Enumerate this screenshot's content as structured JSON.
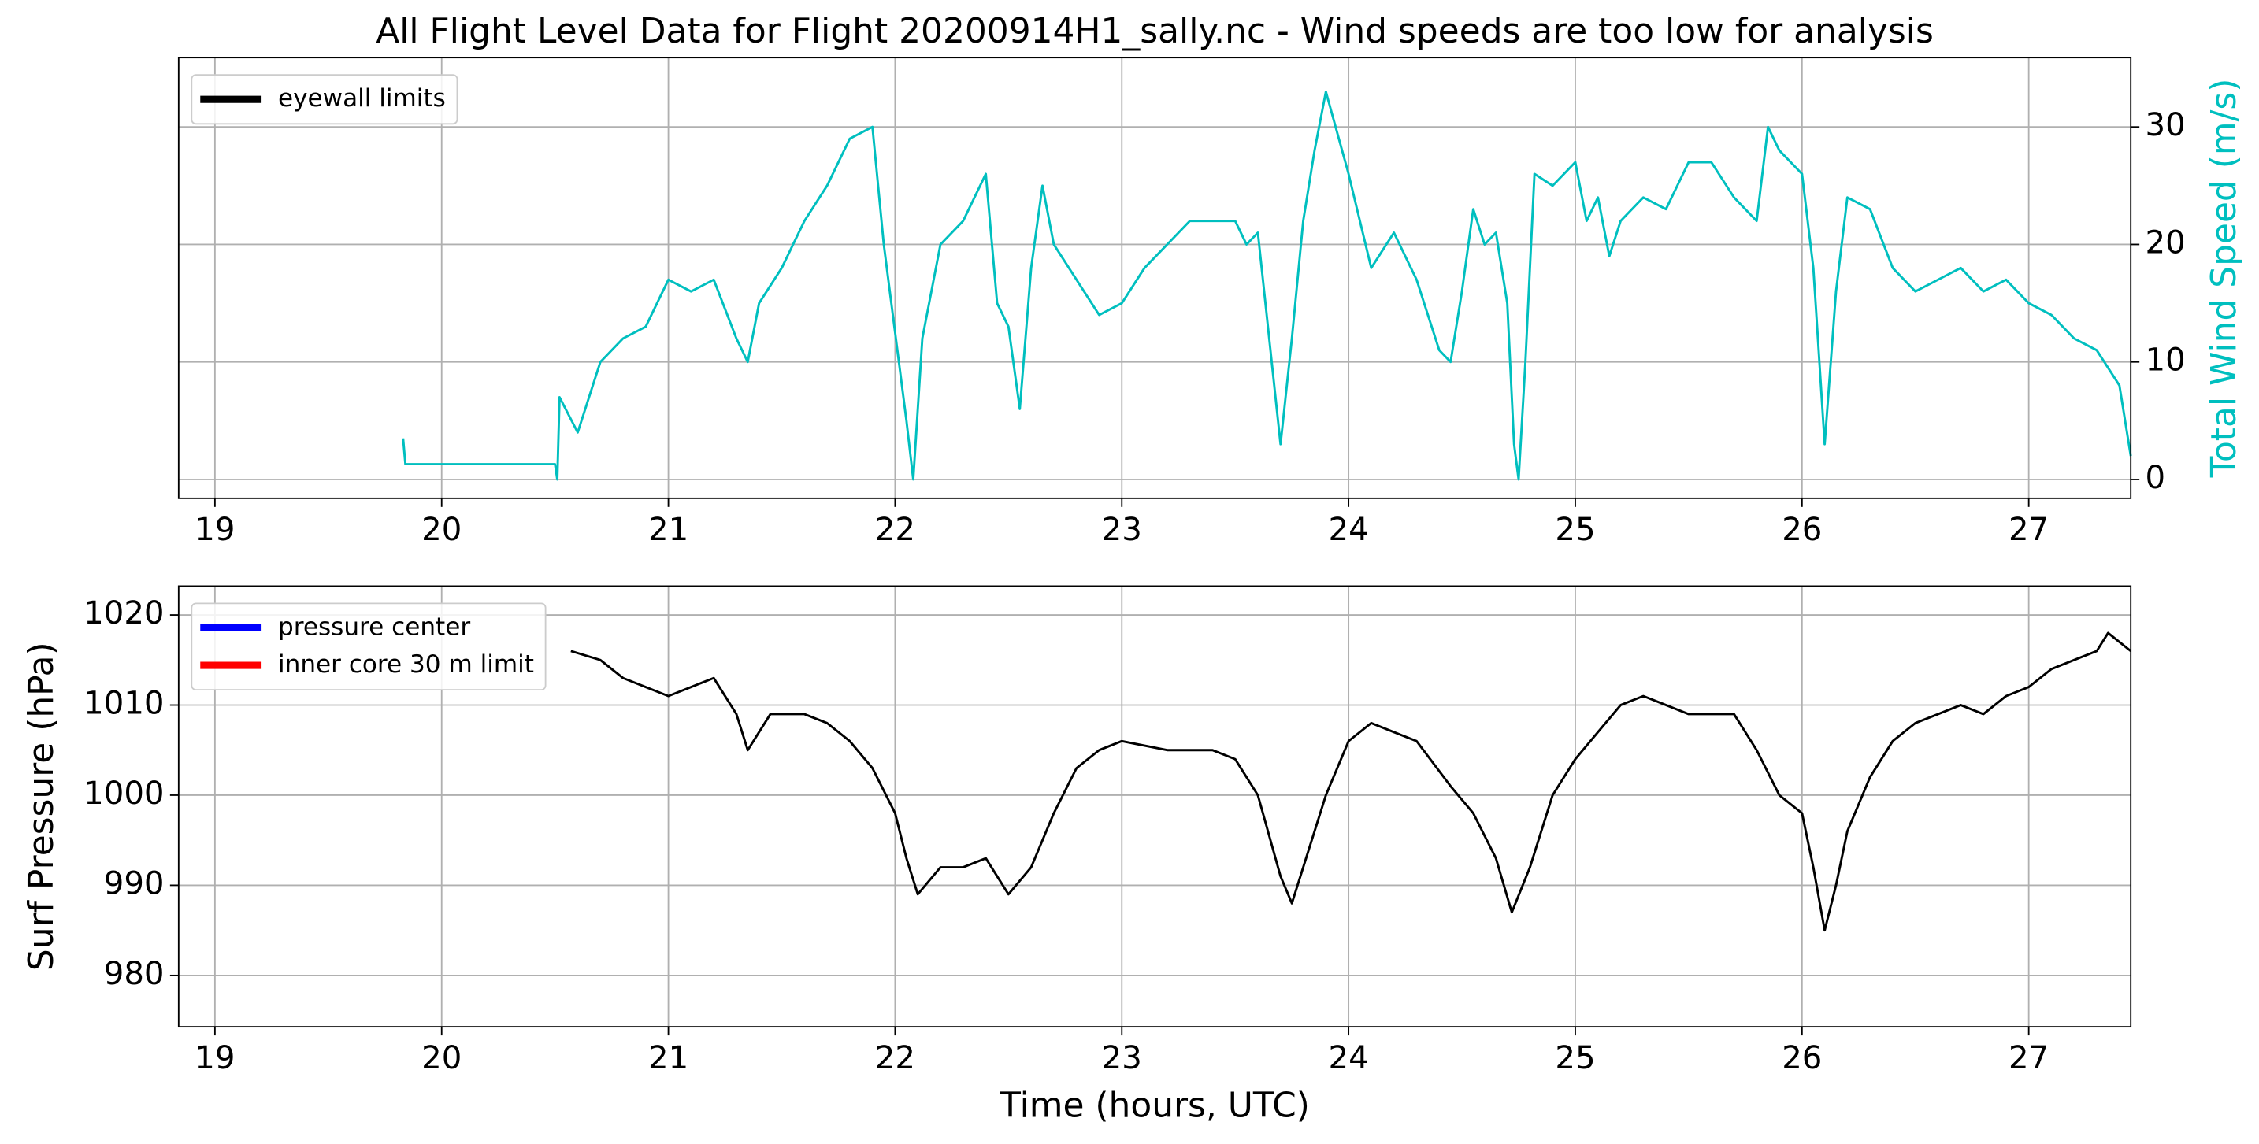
{
  "chart_data": [
    {
      "type": "line",
      "title": "All Flight Level Data for Flight 20200914H1_sally.nc - Wind speeds are too low for analysis",
      "y_label": "Total Wind Speed (m/s)",
      "y_label_color": "#00bfbf",
      "y_axis_side": "right",
      "color": "#00bfbf",
      "x": [
        19.83,
        19.84,
        20.5,
        20.51,
        20.52,
        20.6,
        20.7,
        20.8,
        20.9,
        21.0,
        21.1,
        21.2,
        21.3,
        21.35,
        21.4,
        21.5,
        21.6,
        21.7,
        21.8,
        21.9,
        21.95,
        22.05,
        22.08,
        22.12,
        22.2,
        22.3,
        22.4,
        22.45,
        22.5,
        22.55,
        22.6,
        22.65,
        22.7,
        22.8,
        22.9,
        23.0,
        23.1,
        23.2,
        23.3,
        23.4,
        23.5,
        23.55,
        23.6,
        23.65,
        23.7,
        23.75,
        23.8,
        23.85,
        23.9,
        24.0,
        24.05,
        24.1,
        24.2,
        24.3,
        24.4,
        24.45,
        24.5,
        24.55,
        24.6,
        24.65,
        24.7,
        24.73,
        24.75,
        24.78,
        24.82,
        24.9,
        25.0,
        25.05,
        25.1,
        25.15,
        25.2,
        25.3,
        25.4,
        25.5,
        25.6,
        25.7,
        25.8,
        25.85,
        25.9,
        26.0,
        26.05,
        26.1,
        26.15,
        26.2,
        26.3,
        26.4,
        26.5,
        26.6,
        26.7,
        26.8,
        26.9,
        27.0,
        27.1,
        27.2,
        27.3,
        27.4,
        27.45
      ],
      "values": [
        3.5,
        1.3,
        1.3,
        0,
        7,
        4,
        10,
        12,
        13,
        17,
        16,
        17,
        12,
        10,
        15,
        18,
        22,
        25,
        29,
        30,
        20,
        5,
        0,
        12,
        20,
        22,
        26,
        15,
        13,
        6,
        18,
        25,
        20,
        17,
        14,
        15,
        18,
        20,
        22,
        22,
        22,
        20,
        21,
        12,
        3,
        12,
        22,
        28,
        33,
        26,
        22,
        18,
        21,
        17,
        11,
        10,
        16,
        23,
        20,
        21,
        15,
        3,
        0,
        10,
        26,
        25,
        27,
        22,
        24,
        19,
        22,
        24,
        23,
        27,
        27,
        24,
        22,
        30,
        28,
        26,
        18,
        3,
        16,
        24,
        23,
        18,
        16,
        17,
        18,
        16,
        17,
        15,
        14,
        12,
        11,
        8,
        2
      ],
      "xlim": [
        18.84,
        27.45
      ],
      "xticks": [
        19,
        20,
        21,
        22,
        23,
        24,
        25,
        26,
        27
      ],
      "ylim": [
        -1.6,
        35.9
      ],
      "yticks": [
        0,
        10,
        20,
        30
      ],
      "grid": true,
      "legend": {
        "loc": "upper left",
        "entries": [
          {
            "name": "eyewall limits",
            "color": "#000000"
          }
        ]
      }
    },
    {
      "type": "line",
      "x_label": "Time (hours, UTC)",
      "y_label": "Surf Pressure (hPa)",
      "y_axis_side": "left",
      "color": "#000000",
      "x": [
        20.57,
        20.7,
        20.8,
        20.9,
        21.0,
        21.1,
        21.2,
        21.3,
        21.35,
        21.45,
        21.6,
        21.7,
        21.8,
        21.9,
        22.0,
        22.05,
        22.1,
        22.2,
        22.3,
        22.4,
        22.5,
        22.6,
        22.7,
        22.8,
        22.9,
        23.0,
        23.2,
        23.4,
        23.5,
        23.6,
        23.7,
        23.75,
        23.8,
        23.9,
        24.0,
        24.1,
        24.2,
        24.3,
        24.45,
        24.55,
        24.65,
        24.72,
        24.8,
        24.9,
        25.0,
        25.1,
        25.2,
        25.3,
        25.4,
        25.5,
        25.6,
        25.7,
        25.8,
        25.9,
        26.0,
        26.05,
        26.1,
        26.15,
        26.2,
        26.3,
        26.4,
        26.5,
        26.6,
        26.7,
        26.8,
        26.9,
        27.0,
        27.1,
        27.2,
        27.3,
        27.35,
        27.45
      ],
      "values": [
        1016,
        1015,
        1013,
        1012,
        1011,
        1012,
        1013,
        1009,
        1005,
        1009,
        1009,
        1008,
        1006,
        1003,
        998,
        993,
        989,
        992,
        992,
        993,
        989,
        992,
        998,
        1003,
        1005,
        1006,
        1005,
        1005,
        1004,
        1000,
        991,
        988,
        992,
        1000,
        1006,
        1008,
        1007,
        1006,
        1001,
        998,
        993,
        987,
        992,
        1000,
        1004,
        1007,
        1010,
        1011,
        1010,
        1009,
        1009,
        1009,
        1005,
        1000,
        998,
        992,
        985,
        990,
        996,
        1002,
        1006,
        1008,
        1009,
        1010,
        1009,
        1011,
        1012,
        1014,
        1015,
        1016,
        1018,
        1016
      ],
      "xlim": [
        18.84,
        27.45
      ],
      "xticks": [
        19,
        20,
        21,
        22,
        23,
        24,
        25,
        26,
        27
      ],
      "ylim": [
        974.3,
        1023.2
      ],
      "yticks": [
        980,
        990,
        1000,
        1010,
        1020
      ],
      "grid": true,
      "legend": {
        "loc": "upper left",
        "entries": [
          {
            "name": "pressure center",
            "color": "#0000ff"
          },
          {
            "name": "inner core 30 m limit",
            "color": "#ff0000"
          }
        ]
      }
    }
  ]
}
